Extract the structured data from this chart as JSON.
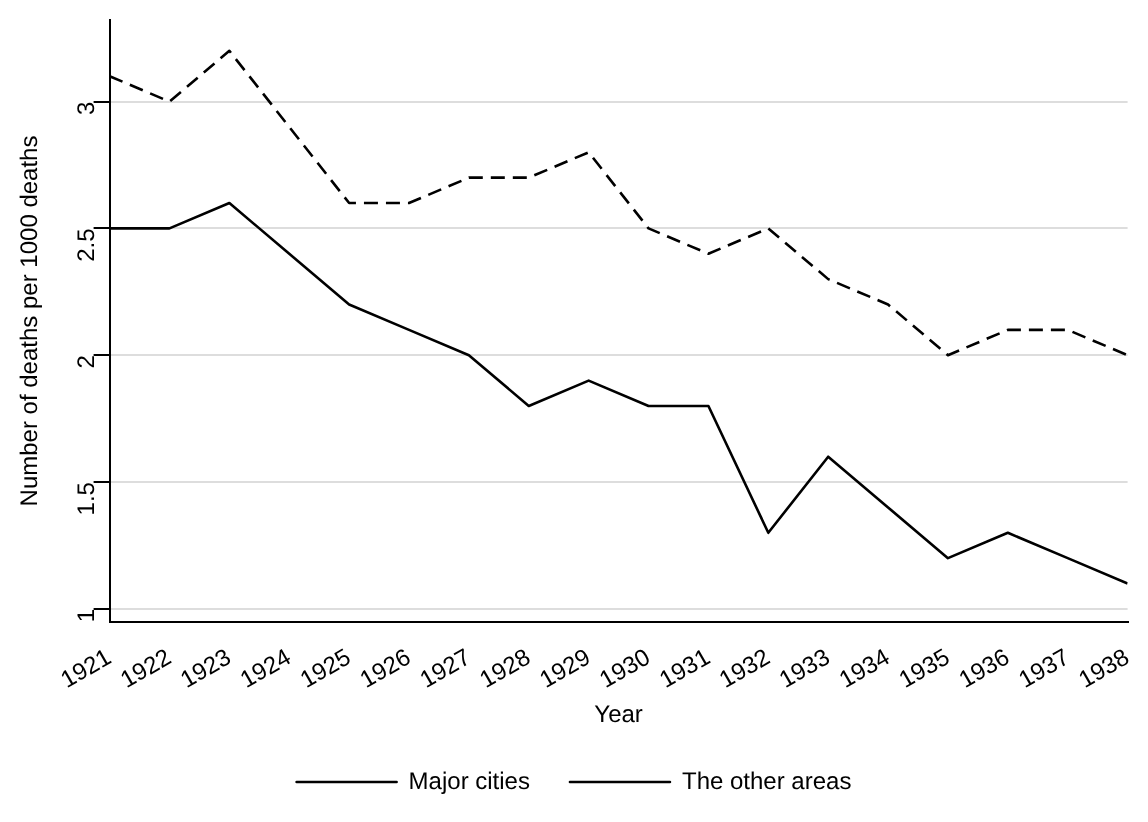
{
  "chart_data": {
    "type": "line",
    "xlabel": "Year",
    "ylabel": "Number of deaths per 1000 deaths",
    "x": [
      1921,
      1922,
      1923,
      1924,
      1925,
      1926,
      1927,
      1928,
      1929,
      1930,
      1931,
      1932,
      1933,
      1934,
      1935,
      1936,
      1937,
      1938
    ],
    "series": [
      {
        "name": "Major cities",
        "color": "#000000",
        "line_style": "solid",
        "values": [
          2.5,
          2.5,
          2.6,
          2.4,
          2.2,
          2.1,
          2.0,
          1.8,
          1.9,
          1.8,
          1.8,
          1.3,
          1.6,
          1.4,
          1.2,
          1.3,
          1.2,
          1.1
        ]
      },
      {
        "name": "The other areas",
        "color": "#000000",
        "line_style": "dashed",
        "values": [
          3.1,
          3.0,
          3.2,
          2.9,
          2.6,
          2.6,
          2.7,
          2.7,
          2.8,
          2.5,
          2.4,
          2.5,
          2.3,
          2.2,
          2.0,
          2.1,
          2.1,
          2.0
        ]
      }
    ],
    "xlim": [
      1921,
      1938
    ],
    "xticks": [
      1921,
      1922,
      1923,
      1924,
      1925,
      1926,
      1927,
      1928,
      1929,
      1930,
      1931,
      1932,
      1933,
      1934,
      1935,
      1936,
      1937,
      1938
    ],
    "ylim": [
      0.95,
      3.32
    ],
    "yticks": [
      1,
      1.5,
      2,
      2.5,
      3
    ],
    "grid": "y",
    "legend": "bottom",
    "marker": "none"
  }
}
